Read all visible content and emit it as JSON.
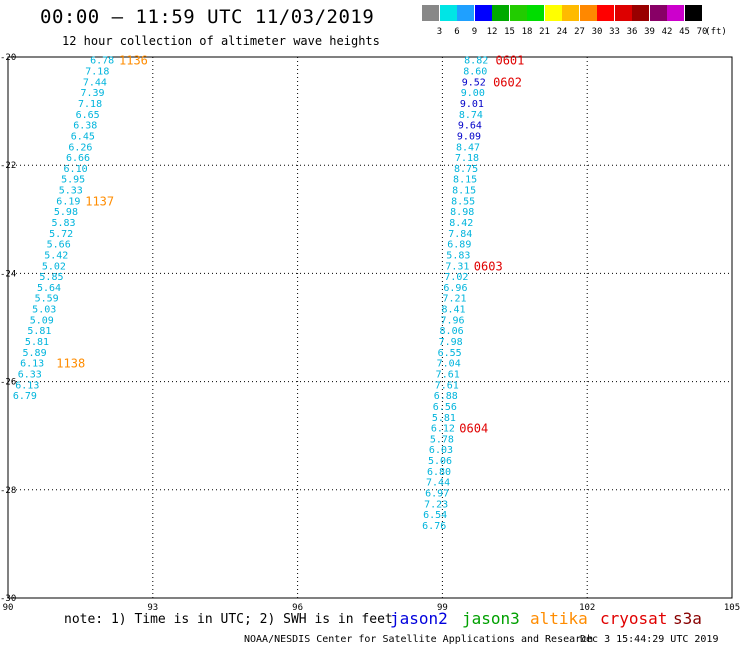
{
  "header": {
    "title": "00:00 – 11:59 UTC 11/03/2019",
    "subtitle": "12 hour collection of altimeter wave heights"
  },
  "colorbar": {
    "labels": [
      "3",
      "6",
      "9",
      "12",
      "15",
      "18",
      "21",
      "24",
      "27",
      "30",
      "33",
      "36",
      "39",
      "42",
      "45",
      "70"
    ],
    "unit": "(ft)",
    "colors": [
      "#888888",
      "#00e5e5",
      "#1fa0ff",
      "#0000ff",
      "#00aa00",
      "#22cc00",
      "#00dd00",
      "#ffff00",
      "#ffbb00",
      "#ff8800",
      "#ff0000",
      "#dd0000",
      "#990000",
      "#880066",
      "#cc00cc",
      "#000000"
    ]
  },
  "chart_data": {
    "type": "scatter",
    "xlim": [
      90,
      105
    ],
    "ylim": [
      -30,
      -20
    ],
    "x_ticks": [
      "90",
      "93",
      "96",
      "99",
      "102",
      "105"
    ],
    "y_ticks": [
      "-20",
      "-22",
      "-24",
      "-26",
      "-28",
      "-30"
    ],
    "grid": true,
    "track_altika": {
      "color": "#00b4dc",
      "points": [
        {
          "x": 92.2,
          "y": -20.05,
          "v": "6.78"
        },
        {
          "x": 92.1,
          "y": -20.25,
          "v": "7.18"
        },
        {
          "x": 92.05,
          "y": -20.45,
          "v": "7.44"
        },
        {
          "x": 92.0,
          "y": -20.65,
          "v": "7.39"
        },
        {
          "x": 91.95,
          "y": -20.85,
          "v": "7.18"
        },
        {
          "x": 91.9,
          "y": -21.05,
          "v": "6.65"
        },
        {
          "x": 91.85,
          "y": -21.25,
          "v": "6.38"
        },
        {
          "x": 91.8,
          "y": -21.45,
          "v": "6.45"
        },
        {
          "x": 91.75,
          "y": -21.65,
          "v": "6.26"
        },
        {
          "x": 91.7,
          "y": -21.85,
          "v": "6.66"
        },
        {
          "x": 91.65,
          "y": -22.05,
          "v": "6.10"
        },
        {
          "x": 91.6,
          "y": -22.25,
          "v": "5.95"
        },
        {
          "x": 91.55,
          "y": -22.45,
          "v": "5.33"
        },
        {
          "x": 91.5,
          "y": -22.65,
          "v": "6.19"
        },
        {
          "x": 91.45,
          "y": -22.85,
          "v": "5.98"
        },
        {
          "x": 91.4,
          "y": -23.05,
          "v": "5.83"
        },
        {
          "x": 91.35,
          "y": -23.25,
          "v": "5.72"
        },
        {
          "x": 91.3,
          "y": -23.45,
          "v": "5.66"
        },
        {
          "x": 91.25,
          "y": -23.65,
          "v": "5.42"
        },
        {
          "x": 91.2,
          "y": -23.85,
          "v": "5.02"
        },
        {
          "x": 91.15,
          "y": -24.05,
          "v": "5.85"
        },
        {
          "x": 91.1,
          "y": -24.25,
          "v": "5.64"
        },
        {
          "x": 91.05,
          "y": -24.45,
          "v": "5.59"
        },
        {
          "x": 91.0,
          "y": -24.65,
          "v": "5.03"
        },
        {
          "x": 90.95,
          "y": -24.85,
          "v": "5.09"
        },
        {
          "x": 90.9,
          "y": -25.05,
          "v": "5.81"
        },
        {
          "x": 90.85,
          "y": -25.25,
          "v": "5.81"
        },
        {
          "x": 90.8,
          "y": -25.45,
          "v": "5.89"
        },
        {
          "x": 90.75,
          "y": -25.65,
          "v": "6.13"
        },
        {
          "x": 90.7,
          "y": -25.85,
          "v": "6.33"
        },
        {
          "x": 90.65,
          "y": -26.05,
          "v": "6.13"
        },
        {
          "x": 90.6,
          "y": -26.25,
          "v": "6.79"
        }
      ],
      "time_labels": [
        {
          "x": 92.3,
          "y": -20.05,
          "text": "1136"
        },
        {
          "x": 91.6,
          "y": -22.65,
          "text": "1137"
        },
        {
          "x": 91.0,
          "y": -25.65,
          "text": "1138"
        }
      ],
      "time_color": "#ff8c00"
    },
    "track_cryosat": {
      "color": "#00b4dc",
      "points": [
        {
          "x": 99.95,
          "y": -20.05,
          "v": "8.82",
          "c": "#00b4dc"
        },
        {
          "x": 99.93,
          "y": -20.25,
          "v": "8.60",
          "c": "#00b4dc"
        },
        {
          "x": 99.9,
          "y": -20.45,
          "v": "9.52",
          "c": "#0000c8"
        },
        {
          "x": 99.88,
          "y": -20.65,
          "v": "9.00",
          "c": "#00b4dc"
        },
        {
          "x": 99.86,
          "y": -20.85,
          "v": "9.01",
          "c": "#0000c8"
        },
        {
          "x": 99.84,
          "y": -21.05,
          "v": "8.74",
          "c": "#00b4dc"
        },
        {
          "x": 99.82,
          "y": -21.25,
          "v": "9.64",
          "c": "#0000c8"
        },
        {
          "x": 99.8,
          "y": -21.45,
          "v": "9.09",
          "c": "#0000c8"
        },
        {
          "x": 99.78,
          "y": -21.65,
          "v": "8.47",
          "c": "#00b4dc"
        },
        {
          "x": 99.76,
          "y": -21.85,
          "v": "7.18",
          "c": "#00b4dc"
        },
        {
          "x": 99.74,
          "y": -22.05,
          "v": "8.75",
          "c": "#00b4dc"
        },
        {
          "x": 99.72,
          "y": -22.25,
          "v": "8.15",
          "c": "#00b4dc"
        },
        {
          "x": 99.7,
          "y": -22.45,
          "v": "8.15",
          "c": "#00b4dc"
        },
        {
          "x": 99.68,
          "y": -22.65,
          "v": "8.55",
          "c": "#00b4dc"
        },
        {
          "x": 99.66,
          "y": -22.85,
          "v": "8.98",
          "c": "#00b4dc"
        },
        {
          "x": 99.64,
          "y": -23.05,
          "v": "8.42",
          "c": "#00b4dc"
        },
        {
          "x": 99.62,
          "y": -23.25,
          "v": "7.84",
          "c": "#00b4dc"
        },
        {
          "x": 99.6,
          "y": -23.45,
          "v": "6.89",
          "c": "#00b4dc"
        },
        {
          "x": 99.58,
          "y": -23.65,
          "v": "5.83",
          "c": "#00b4dc"
        },
        {
          "x": 99.56,
          "y": -23.85,
          "v": "7.31",
          "c": "#00b4dc"
        },
        {
          "x": 99.54,
          "y": -24.05,
          "v": "7.02",
          "c": "#00b4dc"
        },
        {
          "x": 99.52,
          "y": -24.25,
          "v": "6.96",
          "c": "#00b4dc"
        },
        {
          "x": 99.5,
          "y": -24.45,
          "v": "7.21",
          "c": "#00b4dc"
        },
        {
          "x": 99.48,
          "y": -24.65,
          "v": "8.41",
          "c": "#00b4dc"
        },
        {
          "x": 99.46,
          "y": -24.85,
          "v": "7.96",
          "c": "#00b4dc"
        },
        {
          "x": 99.44,
          "y": -25.05,
          "v": "8.06",
          "c": "#00b4dc"
        },
        {
          "x": 99.42,
          "y": -25.25,
          "v": "7.98",
          "c": "#00b4dc"
        },
        {
          "x": 99.4,
          "y": -25.45,
          "v": "6.55",
          "c": "#00b4dc"
        },
        {
          "x": 99.38,
          "y": -25.65,
          "v": "7.04",
          "c": "#00b4dc"
        },
        {
          "x": 99.36,
          "y": -25.85,
          "v": "7.61",
          "c": "#00b4dc"
        },
        {
          "x": 99.34,
          "y": -26.05,
          "v": "7.61",
          "c": "#00b4dc"
        },
        {
          "x": 99.32,
          "y": -26.25,
          "v": "6.88",
          "c": "#00b4dc"
        },
        {
          "x": 99.3,
          "y": -26.45,
          "v": "6.56",
          "c": "#00b4dc"
        },
        {
          "x": 99.28,
          "y": -26.65,
          "v": "5.81",
          "c": "#00b4dc"
        },
        {
          "x": 99.26,
          "y": -26.85,
          "v": "6.12",
          "c": "#00b4dc"
        },
        {
          "x": 99.24,
          "y": -27.05,
          "v": "5.78",
          "c": "#00b4dc"
        },
        {
          "x": 99.22,
          "y": -27.25,
          "v": "6.03",
          "c": "#00b4dc"
        },
        {
          "x": 99.2,
          "y": -27.45,
          "v": "5.06",
          "c": "#00b4dc"
        },
        {
          "x": 99.18,
          "y": -27.65,
          "v": "6.80",
          "c": "#00b4dc"
        },
        {
          "x": 99.16,
          "y": -27.85,
          "v": "7.44",
          "c": "#00b4dc"
        },
        {
          "x": 99.14,
          "y": -28.05,
          "v": "6.97",
          "c": "#00b4dc"
        },
        {
          "x": 99.12,
          "y": -28.25,
          "v": "7.23",
          "c": "#00b4dc"
        },
        {
          "x": 99.1,
          "y": -28.45,
          "v": "6.54",
          "c": "#00b4dc"
        },
        {
          "x": 99.08,
          "y": -28.65,
          "v": "6.76",
          "c": "#00b4dc"
        }
      ],
      "time_labels": [
        {
          "x": 100.1,
          "y": -20.05,
          "text": "0601"
        },
        {
          "x": 100.05,
          "y": -20.45,
          "text": "0602"
        },
        {
          "x": 99.65,
          "y": -23.85,
          "text": "0603"
        },
        {
          "x": 99.35,
          "y": -26.85,
          "text": "0604"
        }
      ],
      "time_color": "#e00000"
    }
  },
  "notes": {
    "note_text": "note: 1) Time is in UTC; 2) SWH is in feet"
  },
  "satellites": [
    {
      "name": "jason2",
      "color": "#0000dd"
    },
    {
      "name": "jason3",
      "color": "#00a000"
    },
    {
      "name": "altika",
      "color": "#ff8c00"
    },
    {
      "name": "cryosat",
      "color": "#e00000"
    },
    {
      "name": "s3a",
      "color": "#880000"
    }
  ],
  "footer": {
    "left": "NOAA/NESDIS Center for Satellite Applications and Research",
    "right": "Dec  3 15:44:29 UTC 2019"
  }
}
